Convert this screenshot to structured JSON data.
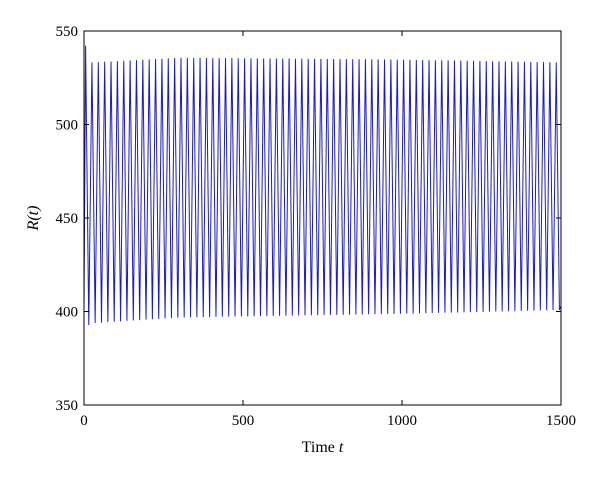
{
  "chart_data": {
    "type": "line",
    "title": "",
    "xlabel": "Time",
    "xlabel_var": "t",
    "ylabel": "R(t)",
    "xlim": [
      0,
      1500
    ],
    "ylim": [
      350,
      550
    ],
    "xticks": [
      "0",
      "500",
      "1000",
      "1500"
    ],
    "yticks": [
      "350",
      "400",
      "450",
      "500",
      "550"
    ],
    "grid": false,
    "legend": "none",
    "line_color": "#1a1acc",
    "series": [
      {
        "oscillation_period": 20,
        "initial_peak": 542,
        "initial_trough": 393,
        "peak_envelope": [
          [
            30,
            533
          ],
          [
            300,
            535.5
          ],
          [
            1000,
            534.5
          ],
          [
            1500,
            533
          ]
        ],
        "trough_envelope": [
          [
            30,
            394
          ],
          [
            300,
            397
          ],
          [
            1000,
            399
          ],
          [
            1500,
            401
          ]
        ]
      }
    ]
  }
}
